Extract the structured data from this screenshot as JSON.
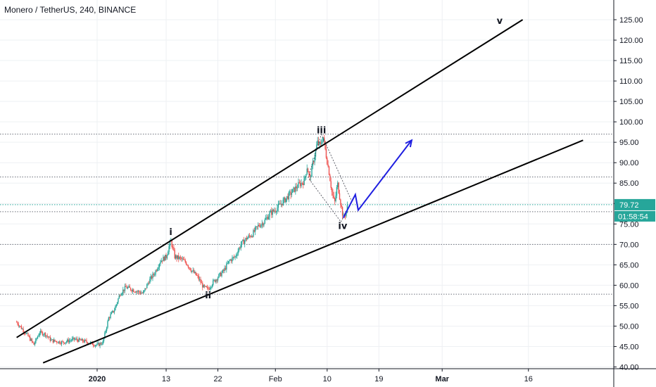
{
  "title": "Monero / TetherUS, 240, BINANCE",
  "chart_data": {
    "type": "candlestick",
    "y_axis": {
      "ticks": [
        40,
        45,
        50,
        55,
        60,
        65,
        70,
        75,
        80,
        85,
        90,
        95,
        100,
        105,
        110,
        115,
        120,
        125
      ],
      "tick_labels": [
        "40.00",
        "45.00",
        "50.00",
        "55.00",
        "60.00",
        "65.00",
        "70.00",
        "75.00",
        "80.00",
        "85.00",
        "90.00",
        "95.00",
        "100.00",
        "105.00",
        "110.00",
        "115.00",
        "120.00",
        "125.00"
      ]
    },
    "x_axis": {
      "ticks": [
        {
          "label": "2020",
          "day": 0,
          "bold": true
        },
        {
          "label": "13",
          "day": 12
        },
        {
          "label": "22",
          "day": 21
        },
        {
          "label": "Feb",
          "day": 31
        },
        {
          "label": "10",
          "day": 40
        },
        {
          "label": "19",
          "day": 49
        },
        {
          "label": "Mar",
          "day": 60,
          "bold": true
        },
        {
          "label": "16",
          "day": 75
        }
      ]
    },
    "price_path": [
      [
        -14,
        51.0
      ],
      [
        -12,
        47.5
      ],
      [
        -11,
        45.5
      ],
      [
        -10,
        48.5
      ],
      [
        -9,
        48.0
      ],
      [
        -8,
        46.5
      ],
      [
        -6,
        46.0
      ],
      [
        -4,
        46.8
      ],
      [
        -2,
        46.2
      ],
      [
        0,
        45.3
      ],
      [
        1,
        46.0
      ],
      [
        2,
        52.0
      ],
      [
        3,
        54.0
      ],
      [
        4,
        58.0
      ],
      [
        5,
        59.5
      ],
      [
        6,
        59.0
      ],
      [
        7,
        58.5
      ],
      [
        8,
        58.0
      ],
      [
        9,
        61.0
      ],
      [
        10,
        63.0
      ],
      [
        11,
        66.0
      ],
      [
        12,
        67.0
      ],
      [
        12.8,
        71.0
      ],
      [
        13.5,
        67.0
      ],
      [
        14.5,
        66.5
      ],
      [
        15.5,
        65.5
      ],
      [
        16.5,
        63.5
      ],
      [
        17.5,
        62.0
      ],
      [
        18.5,
        59.5
      ],
      [
        19.3,
        59.0
      ],
      [
        20,
        60.5
      ],
      [
        21,
        62.0
      ],
      [
        22,
        63.5
      ],
      [
        23,
        66.0
      ],
      [
        24,
        67.0
      ],
      [
        25,
        70.0
      ],
      [
        26,
        71.5
      ],
      [
        27,
        72.5
      ],
      [
        28,
        74.5
      ],
      [
        29,
        75.5
      ],
      [
        30,
        77.5
      ],
      [
        31,
        78.5
      ],
      [
        32,
        80.0
      ],
      [
        33,
        81.5
      ],
      [
        34,
        83.0
      ],
      [
        35,
        84.5
      ],
      [
        36,
        85.5
      ],
      [
        36.5,
        89.0
      ],
      [
        37,
        86.0
      ],
      [
        37.7,
        91.0
      ],
      [
        38.3,
        95.0
      ],
      [
        38.8,
        94.0
      ],
      [
        39.3,
        96.5
      ],
      [
        39.8,
        92.0
      ],
      [
        40.3,
        88.0
      ],
      [
        40.8,
        83.0
      ],
      [
        41.3,
        80.0
      ],
      [
        41.8,
        85.0
      ],
      [
        42.3,
        80.5
      ],
      [
        42.8,
        76.5
      ],
      [
        43.2,
        77.5
      ],
      [
        43.6,
        79.7
      ]
    ],
    "wave_labels": [
      {
        "text": "i",
        "day": 12.8,
        "price": 72.3
      },
      {
        "text": "ii",
        "day": 19.3,
        "price": 56.8
      },
      {
        "text": "iii",
        "day": 39.0,
        "price": 97.2
      },
      {
        "text": "iv",
        "day": 42.7,
        "price": 73.8
      },
      {
        "text": "v",
        "day": 70.0,
        "price": 124.0
      }
    ],
    "channel_lines": [
      {
        "name": "upper",
        "from": [
          -14,
          47.2
        ],
        "to": [
          74.0,
          125.0
        ],
        "color": "#000000"
      },
      {
        "name": "lower",
        "from": [
          -9.4,
          41.0
        ],
        "to": [
          84.5,
          95.5
        ],
        "color": "#000000"
      }
    ],
    "horizontal_levels": [
      97.0,
      86.5,
      70.0,
      57.8
    ],
    "projection": {
      "color": "#1f1fe0",
      "points": [
        [
          42.8,
          76.5
        ],
        [
          44.9,
          82.2
        ],
        [
          45.4,
          78.4
        ],
        [
          54.7,
          95.5
        ]
      ]
    },
    "price_level": {
      "value": 79.72,
      "label": "79.72",
      "color": "#26a69a"
    },
    "level_78": {
      "value": 78.0
    },
    "countdown_label": "01:58:54",
    "colors": {
      "up": "#26a69a",
      "down": "#ef5350",
      "grid": "#eef0f3"
    }
  }
}
